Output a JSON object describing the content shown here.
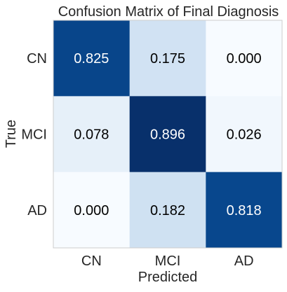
{
  "chart_data": {
    "type": "heatmap",
    "title": "Confusion Matrix of Final Diagnosis",
    "xlabel": "Predicted",
    "ylabel": "True",
    "x_categories": [
      "CN",
      "MCI",
      "AD"
    ],
    "y_categories": [
      "CN",
      "MCI",
      "AD"
    ],
    "values": [
      [
        0.825,
        0.175,
        0.0
      ],
      [
        0.078,
        0.896,
        0.026
      ],
      [
        0.0,
        0.182,
        0.818
      ]
    ],
    "value_labels": [
      [
        "0.825",
        "0.175",
        "0.000"
      ],
      [
        "0.078",
        "0.896",
        "0.026"
      ],
      [
        "0.000",
        "0.182",
        "0.818"
      ]
    ],
    "colormap": "Blues",
    "value_range": [
      0,
      0.896
    ],
    "grid": false,
    "colors": {
      "low": "#f7fbff",
      "high": "#08306b",
      "text_dark": "#000000",
      "text_light": "#ffffff",
      "frame": "#cccccc"
    }
  }
}
